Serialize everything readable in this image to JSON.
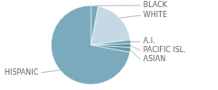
{
  "chart_data": {
    "type": "pie",
    "categories": [
      "BLACK",
      "WHITE",
      "A.I.",
      "PACIFIC ISL.",
      "ASIAN",
      "HISPANIC"
    ],
    "values": [
      3,
      20,
      1.5,
      1.5,
      2,
      72
    ],
    "colors": [
      "#7aaabb",
      "#c5d9e4",
      "#6a9eb0",
      "#5a8fa0",
      "#6899a8",
      "#7aaabb"
    ]
  }
}
